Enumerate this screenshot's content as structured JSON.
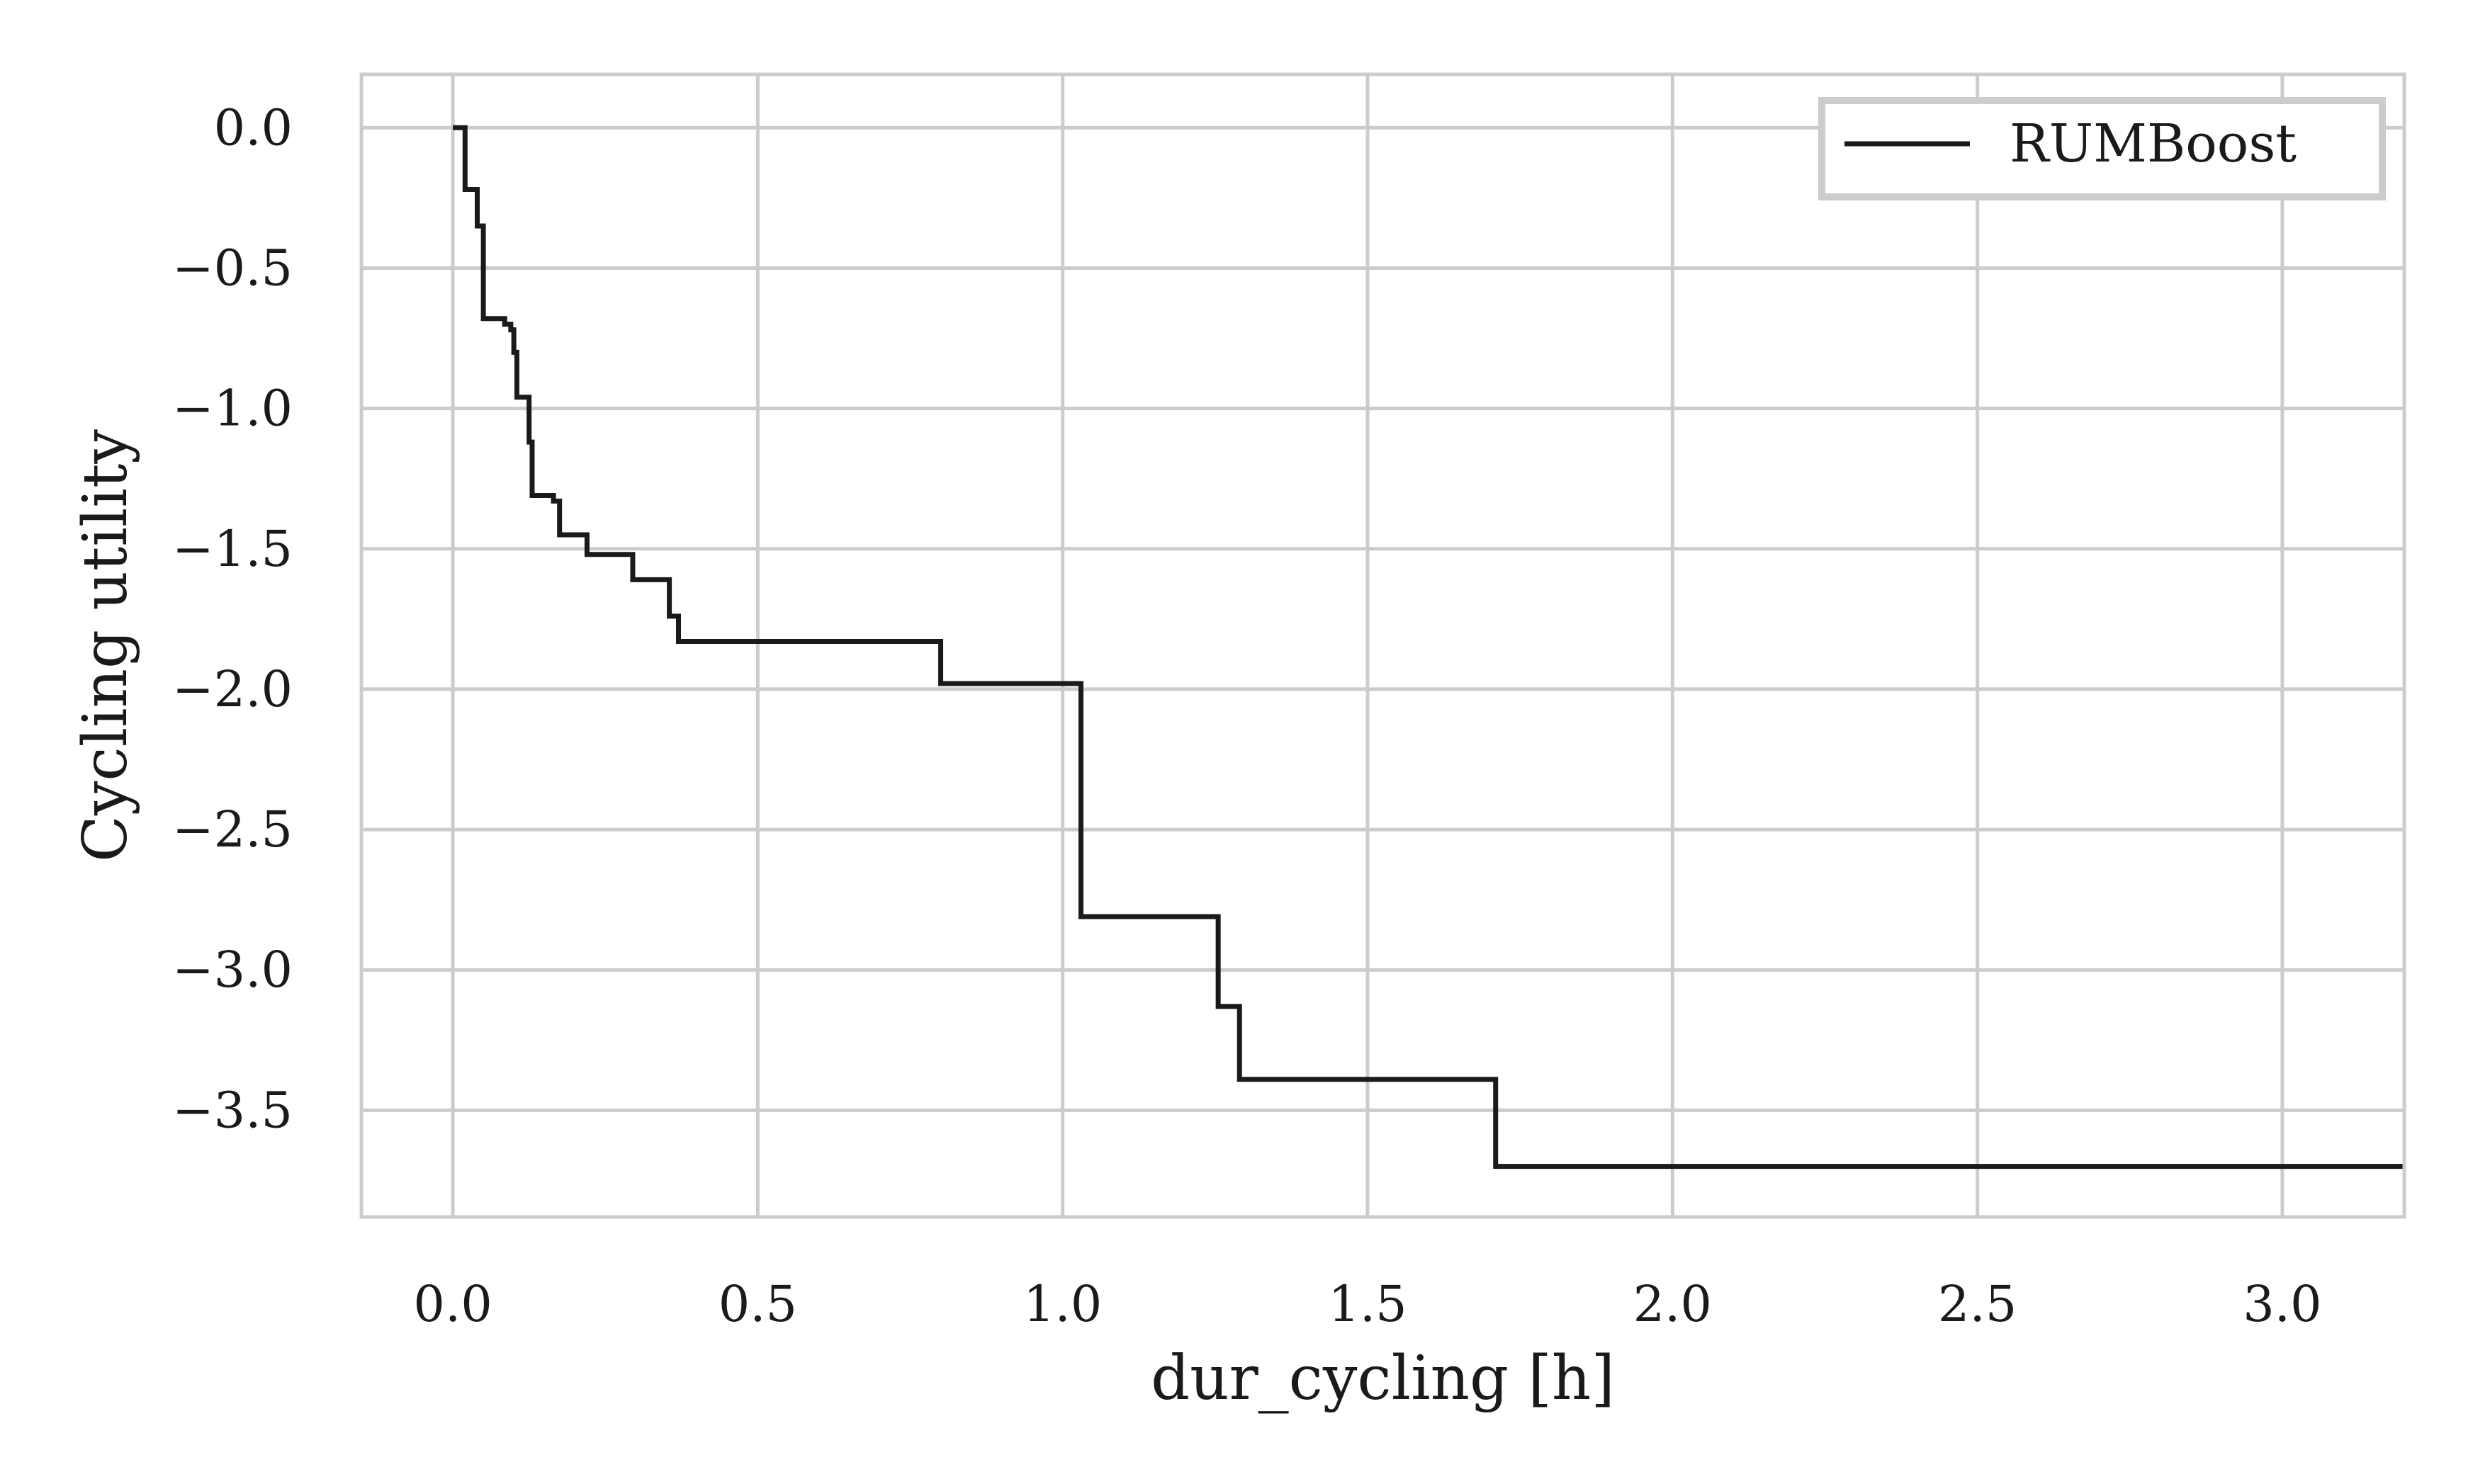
{
  "chart_data": {
    "type": "line",
    "drawstyle": "steps-post",
    "title": "",
    "xlabel": "dur_cycling [h]",
    "ylabel": "Cycling utility",
    "xlim": [
      -0.15,
      3.2
    ],
    "ylim": [
      -3.88,
      0.19
    ],
    "xticks": [
      0.0,
      0.5,
      1.0,
      1.5,
      2.0,
      2.5,
      3.0
    ],
    "xtick_labels": [
      "0.0",
      "0.5",
      "1.0",
      "1.5",
      "2.0",
      "2.5",
      "3.0"
    ],
    "yticks": [
      0.0,
      -0.5,
      -1.0,
      -1.5,
      -2.0,
      -2.5,
      -3.0,
      -3.5
    ],
    "ytick_labels": [
      "0.0",
      "−0.5",
      "−1.0",
      "−1.5",
      "−2.0",
      "−2.5",
      "−3.0",
      "−3.5"
    ],
    "grid": true,
    "legend_position": "top-right",
    "series": [
      {
        "name": "RUMBoost",
        "color": "#1a1a1a",
        "x": [
          0.0,
          0.02,
          0.04,
          0.045,
          0.05,
          0.085,
          0.095,
          0.1,
          0.105,
          0.12,
          0.125,
          0.13,
          0.165,
          0.175,
          0.2,
          0.22,
          0.295,
          0.355,
          0.37,
          0.8,
          1.03,
          1.255,
          1.29,
          1.71,
          3.2
        ],
        "y": [
          0.0,
          -0.22,
          -0.35,
          -0.35,
          -0.68,
          -0.7,
          -0.72,
          -0.8,
          -0.96,
          -0.96,
          -1.12,
          -1.31,
          -1.33,
          -1.45,
          -1.45,
          -1.52,
          -1.61,
          -1.74,
          -1.83,
          -1.98,
          -2.81,
          -3.13,
          -3.39,
          -3.7,
          -3.7
        ]
      }
    ]
  }
}
